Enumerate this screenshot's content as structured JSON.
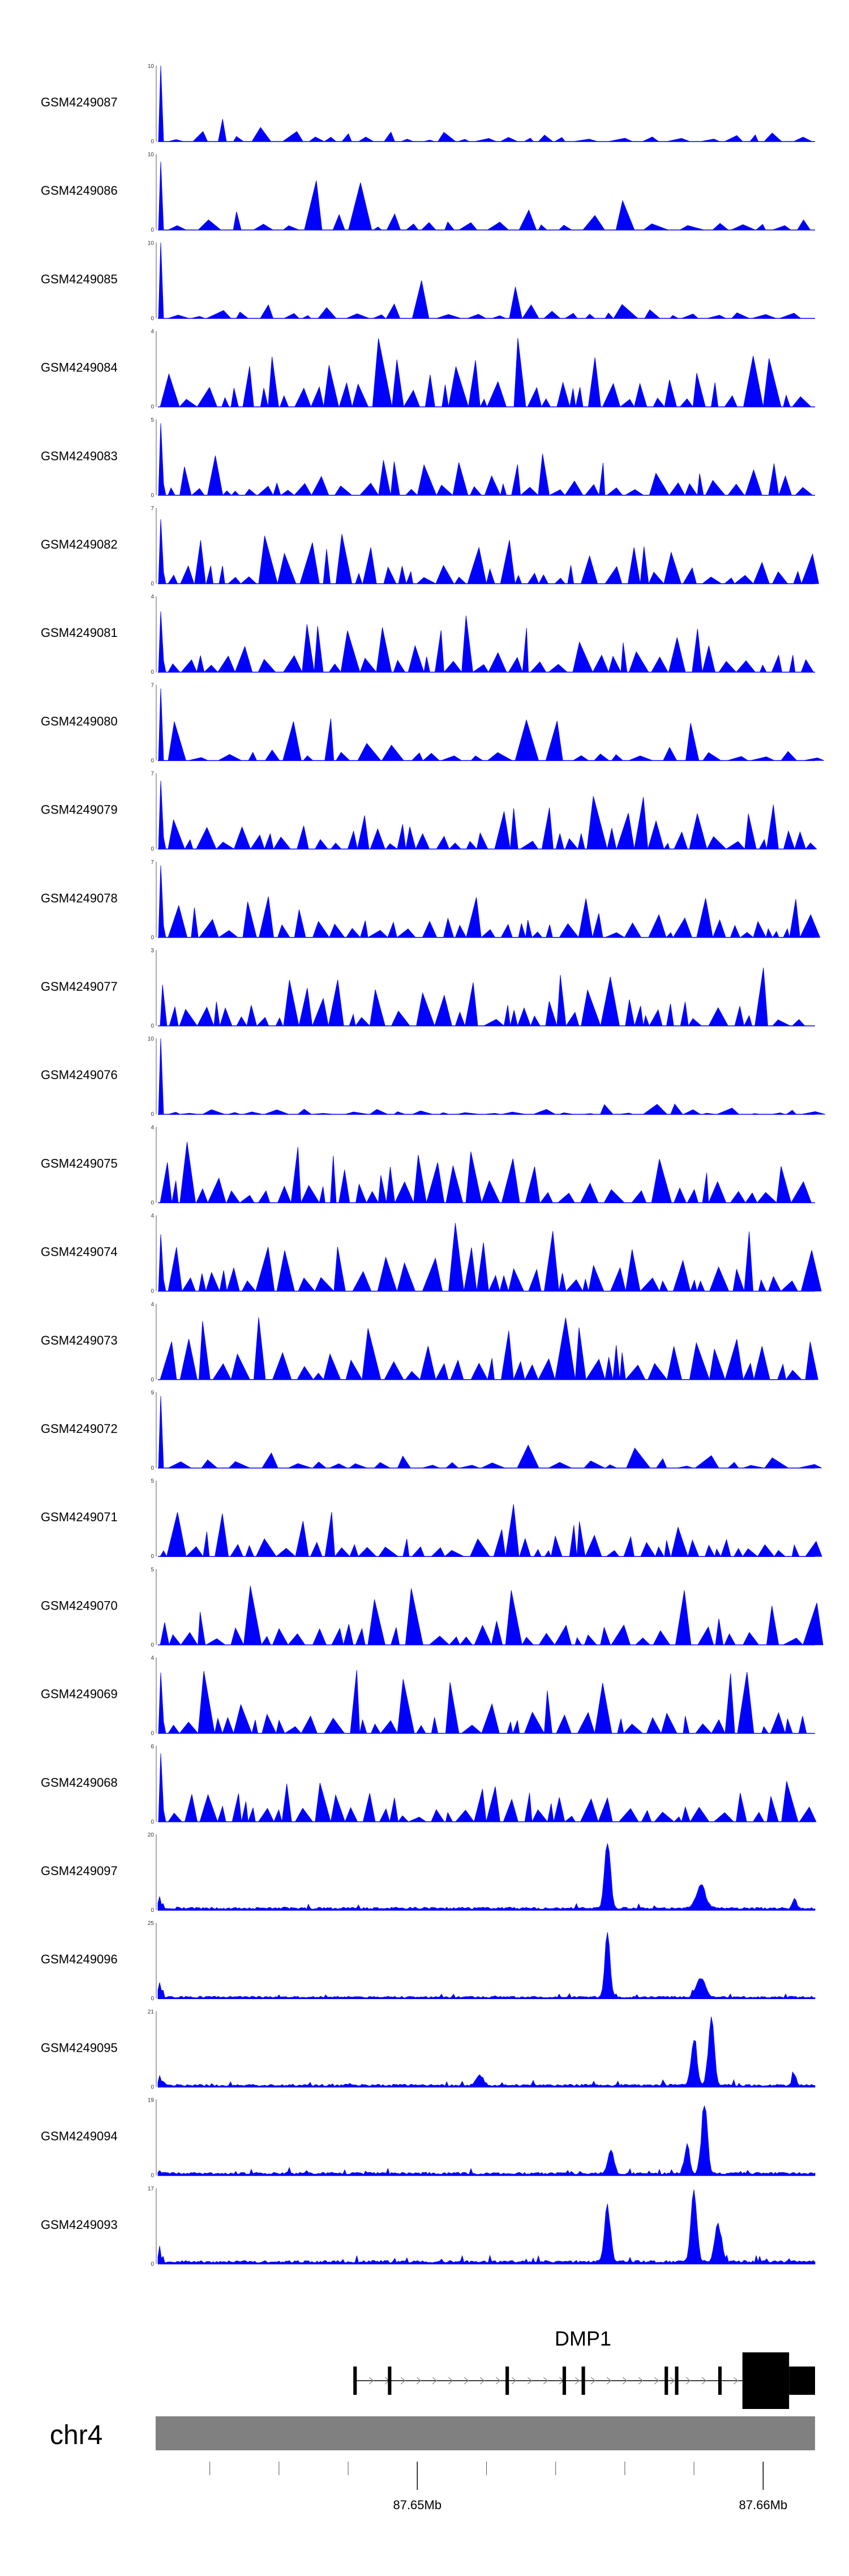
{
  "chart_data": {
    "type": "area",
    "region": {
      "chromosome": "chr4",
      "start": 87.6425,
      "end": 87.6615,
      "unit": "Mb"
    },
    "x_tick_labels": [
      {
        "value": 87.65,
        "label": "87.65Mb"
      },
      {
        "value": 87.66,
        "label": "87.66Mb"
      }
    ],
    "color": "#0000ff",
    "tracks": [
      {
        "name": "GSM4249087",
        "ymax": "10",
        "ymin": "0",
        "max_value": 10,
        "pattern": "sparse",
        "peak_scale": 0.35,
        "seed": 87,
        "early_spike": 1.0
      },
      {
        "name": "GSM4249086",
        "ymax": "10",
        "ymin": "0",
        "max_value": 10,
        "pattern": "sparse",
        "peak_scale": 0.7,
        "seed": 86,
        "early_spike": 0.9
      },
      {
        "name": "GSM4249085",
        "ymax": "10",
        "ymin": "0",
        "max_value": 10,
        "pattern": "sparse",
        "peak_scale": 0.5,
        "seed": 85,
        "early_spike": 1.0
      },
      {
        "name": "GSM4249084",
        "ymax": "4",
        "ymin": "0",
        "max_value": 4,
        "pattern": "dense",
        "peak_scale": 0.95,
        "seed": 84,
        "early_spike": 0
      },
      {
        "name": "GSM4249083",
        "ymax": "5",
        "ymin": "0",
        "max_value": 5,
        "pattern": "dense",
        "peak_scale": 0.55,
        "seed": 83,
        "early_spike": 0.95
      },
      {
        "name": "GSM4249082",
        "ymax": "7",
        "ymin": "0",
        "max_value": 7,
        "pattern": "dense",
        "peak_scale": 0.7,
        "seed": 82,
        "early_spike": 0.85
      },
      {
        "name": "GSM4249081",
        "ymax": "4",
        "ymin": "0",
        "max_value": 4,
        "pattern": "dense",
        "peak_scale": 0.75,
        "seed": 81,
        "early_spike": 0.8
      },
      {
        "name": "GSM4249080",
        "ymax": "7",
        "ymin": "0",
        "max_value": 7,
        "pattern": "sparse",
        "peak_scale": 0.6,
        "seed": 80,
        "early_spike": 0.95
      },
      {
        "name": "GSM4249079",
        "ymax": "7",
        "ymin": "0",
        "max_value": 7,
        "pattern": "dense",
        "peak_scale": 0.7,
        "seed": 79,
        "early_spike": 0.9
      },
      {
        "name": "GSM4249078",
        "ymax": "7",
        "ymin": "0",
        "max_value": 7,
        "pattern": "dense",
        "peak_scale": 0.6,
        "seed": 78,
        "early_spike": 0.95
      },
      {
        "name": "GSM4249077",
        "ymax": "3",
        "ymin": "0",
        "max_value": 3,
        "pattern": "dense",
        "peak_scale": 0.8,
        "seed": 77,
        "early_spike": 0
      },
      {
        "name": "GSM4249076",
        "ymax": "10",
        "ymin": "0",
        "max_value": 10,
        "pattern": "sparse",
        "peak_scale": 0.18,
        "seed": 76,
        "early_spike": 1.0
      },
      {
        "name": "GSM4249075",
        "ymax": "4",
        "ymin": "0",
        "max_value": 4,
        "pattern": "dense",
        "peak_scale": 0.85,
        "seed": 75,
        "early_spike": 0
      },
      {
        "name": "GSM4249074",
        "ymax": "4",
        "ymin": "0",
        "max_value": 4,
        "pattern": "dense",
        "peak_scale": 0.9,
        "seed": 74,
        "early_spike": 0.75
      },
      {
        "name": "GSM4249073",
        "ymax": "4",
        "ymin": "0",
        "max_value": 4,
        "pattern": "dense",
        "peak_scale": 0.85,
        "seed": 73,
        "early_spike": 0
      },
      {
        "name": "GSM4249072",
        "ymax": "9",
        "ymin": "0",
        "max_value": 9,
        "pattern": "sparse",
        "peak_scale": 0.45,
        "seed": 72,
        "early_spike": 0.95
      },
      {
        "name": "GSM4249071",
        "ymax": "5",
        "ymin": "0",
        "max_value": 5,
        "pattern": "dense",
        "peak_scale": 0.75,
        "seed": 71,
        "early_spike": 0
      },
      {
        "name": "GSM4249070",
        "ymax": "5",
        "ymin": "0",
        "max_value": 5,
        "pattern": "dense",
        "peak_scale": 0.8,
        "seed": 70,
        "early_spike": 0
      },
      {
        "name": "GSM4249069",
        "ymax": "4",
        "ymin": "0",
        "max_value": 4,
        "pattern": "dense",
        "peak_scale": 0.85,
        "seed": 69,
        "early_spike": 0.8
      },
      {
        "name": "GSM4249068",
        "ymax": "6",
        "ymin": "0",
        "max_value": 6,
        "pattern": "dense",
        "peak_scale": 0.6,
        "seed": 68,
        "early_spike": 0.9
      },
      {
        "name": "GSM4249097",
        "ymax": "20",
        "ymin": "0",
        "max_value": 20,
        "pattern": "peaks",
        "seed": 97,
        "early_spike": 0.15,
        "peaks": [
          {
            "pos": 87.6555,
            "value": 19.0,
            "width": 0.00012
          },
          {
            "pos": 87.6582,
            "value": 7.0,
            "width": 0.00018
          },
          {
            "pos": 87.6609,
            "value": 3.0,
            "width": 8e-05
          }
        ]
      },
      {
        "name": "GSM4249096",
        "ymax": "25",
        "ymin": "0",
        "max_value": 25,
        "pattern": "peaks",
        "seed": 96,
        "early_spike": 0.2,
        "peaks": [
          {
            "pos": 87.6555,
            "value": 24.0,
            "width": 0.0001
          },
          {
            "pos": 87.6582,
            "value": 7.0,
            "width": 0.00018
          }
        ]
      },
      {
        "name": "GSM4249095",
        "ymax": "21",
        "ymin": "0",
        "max_value": 21,
        "pattern": "peaks",
        "seed": 95,
        "early_spike": 0.12,
        "peaks": [
          {
            "pos": 87.6518,
            "value": 3.0,
            "width": 0.00015
          },
          {
            "pos": 87.658,
            "value": 14.0,
            "width": 0.00012
          },
          {
            "pos": 87.6585,
            "value": 20.5,
            "width": 0.00012
          },
          {
            "pos": 87.6609,
            "value": 3.5,
            "width": 8e-05
          }
        ]
      },
      {
        "name": "GSM4249094",
        "ymax": "19",
        "ymin": "0",
        "max_value": 19,
        "pattern": "peaks",
        "seed": 94,
        "early_spike": 0.05,
        "peaks": [
          {
            "pos": 87.6556,
            "value": 6.5,
            "width": 0.00012
          },
          {
            "pos": 87.6578,
            "value": 8.0,
            "width": 0.0001
          },
          {
            "pos": 87.6583,
            "value": 18.5,
            "width": 0.00012
          }
        ]
      },
      {
        "name": "GSM4249093",
        "ymax": "17",
        "ymin": "0",
        "max_value": 17,
        "pattern": "peaks",
        "seed": 93,
        "early_spike": 0.15,
        "peaks": [
          {
            "pos": 87.6555,
            "value": 13.5,
            "width": 0.00012
          },
          {
            "pos": 87.658,
            "value": 17.0,
            "width": 0.00012
          },
          {
            "pos": 87.6587,
            "value": 9.0,
            "width": 0.00014
          }
        ]
      }
    ],
    "gene": {
      "name": "DMP1",
      "strand": "+",
      "tx_start": 87.6482,
      "tx_end": 87.6615,
      "exons": [
        {
          "start": 87.64815,
          "end": 87.64825,
          "thick": false
        },
        {
          "start": 87.64915,
          "end": 87.64925,
          "thick": false
        },
        {
          "start": 87.65255,
          "end": 87.65265,
          "thick": false
        },
        {
          "start": 87.6542,
          "end": 87.6543,
          "thick": false
        },
        {
          "start": 87.65475,
          "end": 87.65485,
          "thick": false
        },
        {
          "start": 87.65715,
          "end": 87.65725,
          "thick": false
        },
        {
          "start": 87.65745,
          "end": 87.65755,
          "thick": false
        },
        {
          "start": 87.6587,
          "end": 87.6588,
          "thick": false
        },
        {
          "start": 87.6594,
          "end": 87.66075,
          "thick": true
        },
        {
          "start": 87.66075,
          "end": 87.6615,
          "thick": "utr"
        }
      ]
    }
  }
}
